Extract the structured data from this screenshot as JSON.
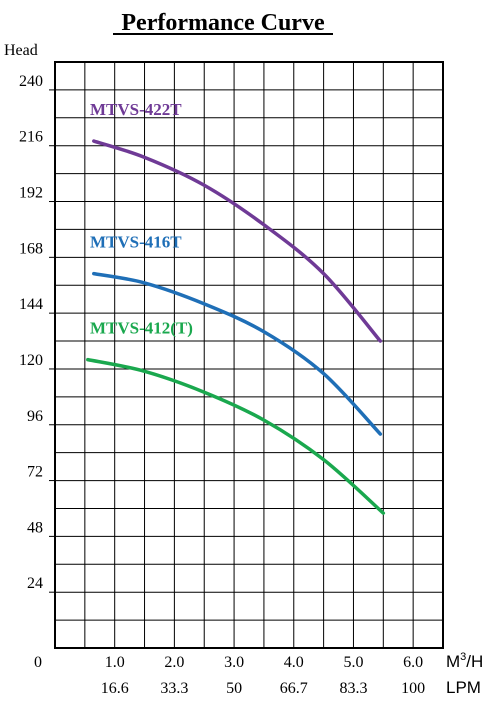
{
  "chart_data": {
    "type": "line",
    "title": "Performance Curve",
    "ylabel": "Head",
    "origin_label": "0",
    "x_unit_label_primary": "M",
    "x_unit_sup": "3",
    "x_unit_suffix": "/H",
    "x_unit_label_secondary": "LPM",
    "xlim": [
      0,
      6.5
    ],
    "ylim": [
      0,
      252
    ],
    "x_ticks": [
      1.0,
      2.0,
      3.0,
      4.0,
      5.0,
      6.0
    ],
    "x_tick_labels": [
      "1.0",
      "2.0",
      "3.0",
      "4.0",
      "5.0",
      "6.0"
    ],
    "x_tick_labels_lpm": [
      "16.6",
      "33.3",
      "50",
      "66.7",
      "83.3",
      "100"
    ],
    "y_ticks": [
      24,
      48,
      72,
      96,
      120,
      144,
      168,
      192,
      216,
      240
    ],
    "y_tick_labels": [
      "24",
      "48",
      "72",
      "96",
      "120",
      "144",
      "168",
      "192",
      "216",
      "240"
    ],
    "grid": true,
    "series": [
      {
        "name": "MTVS-422T",
        "color": "#6f3a96",
        "x": [
          0.65,
          1.5,
          2.5,
          3.5,
          4.5,
          5.45
        ],
        "y": [
          218,
          211,
          199,
          182,
          161,
          132
        ]
      },
      {
        "name": "MTVS-416T",
        "color": "#1f6fb7",
        "x": [
          0.65,
          1.5,
          2.5,
          3.5,
          4.5,
          5.45
        ],
        "y": [
          161,
          157,
          148,
          136,
          118,
          92
        ]
      },
      {
        "name": "MTVS-412(T)",
        "color": "#1aa84e",
        "x": [
          0.55,
          1.5,
          2.5,
          3.5,
          4.5,
          5.5
        ],
        "y": [
          124,
          119,
          110,
          98,
          81,
          58
        ]
      }
    ]
  }
}
